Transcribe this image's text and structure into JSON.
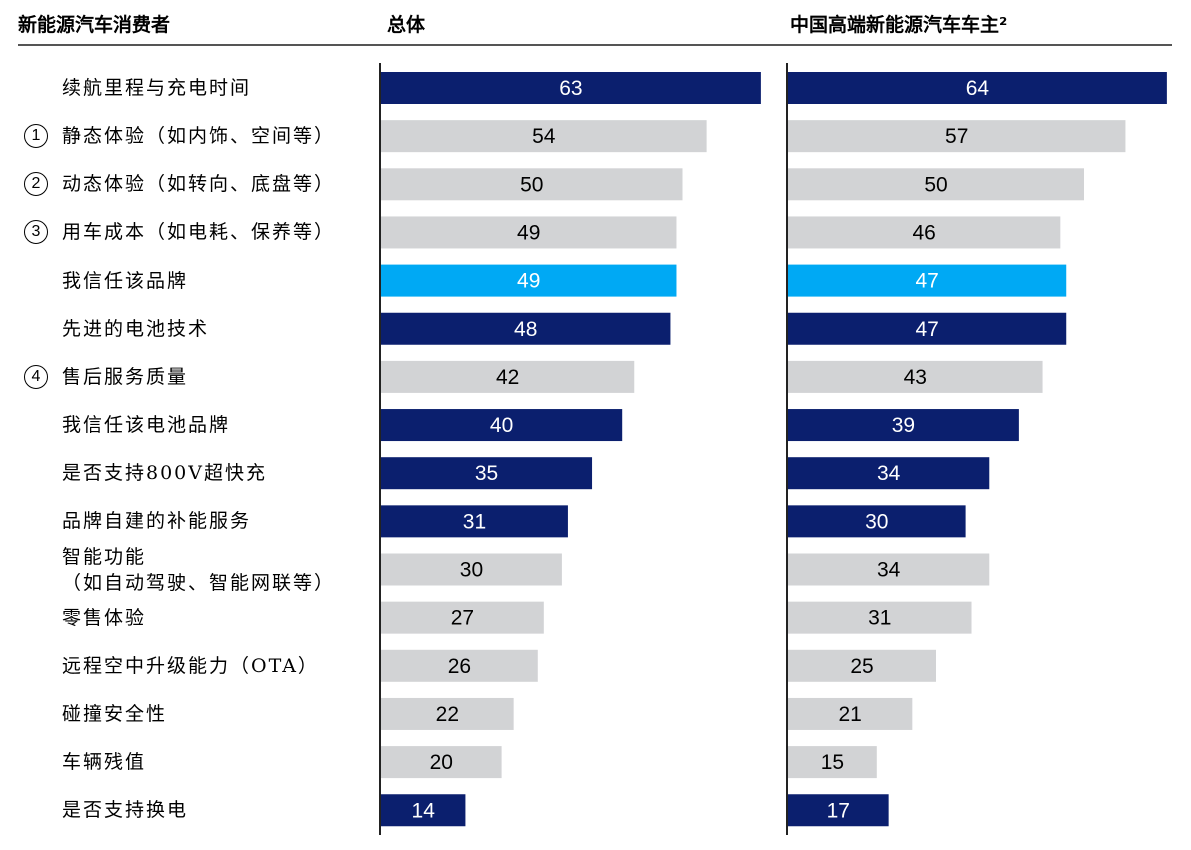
{
  "chart_data": {
    "type": "bar",
    "orientation": "horizontal",
    "header": {
      "category_label": "新能源汽车消费者",
      "panel_titles": [
        "总体",
        "中国高端新能源汽车车主²"
      ]
    },
    "colors": {
      "dark": "#0b1f6e",
      "gray": "#d2d3d5",
      "light": "#00a9f4"
    },
    "categories": [
      {
        "label": "续航里程与充电时间",
        "marker": "",
        "color": "dark"
      },
      {
        "label": "静态体验（如内饰、空间等）",
        "marker": "1",
        "color": "gray"
      },
      {
        "label": "动态体验（如转向、底盘等）",
        "marker": "2",
        "color": "gray"
      },
      {
        "label": "用车成本（如电耗、保养等）",
        "marker": "3",
        "color": "gray"
      },
      {
        "label": "我信任该品牌",
        "marker": "",
        "color": "light"
      },
      {
        "label": "先进的电池技术",
        "marker": "",
        "color": "dark"
      },
      {
        "label": "售后服务质量",
        "marker": "4",
        "color": "gray"
      },
      {
        "label": "我信任该电池品牌",
        "marker": "",
        "color": "dark"
      },
      {
        "label": "是否支持800V超快充",
        "marker": "",
        "color": "dark"
      },
      {
        "label": "品牌自建的补能服务",
        "marker": "",
        "color": "dark"
      },
      {
        "label": "智能功能\n（如自动驾驶、智能网联等）",
        "marker": "",
        "color": "gray"
      },
      {
        "label": "零售体验",
        "marker": "",
        "color": "gray"
      },
      {
        "label": "远程空中升级能力（OTA）",
        "marker": "",
        "color": "gray"
      },
      {
        "label": "碰撞安全性",
        "marker": "",
        "color": "gray"
      },
      {
        "label": "车辆残值",
        "marker": "",
        "color": "gray"
      },
      {
        "label": "是否支持换电",
        "marker": "",
        "color": "dark"
      }
    ],
    "series": [
      {
        "name": "总体",
        "values": [
          63,
          54,
          50,
          49,
          49,
          48,
          42,
          40,
          35,
          31,
          30,
          27,
          26,
          22,
          20,
          14
        ]
      },
      {
        "name": "中国高端新能源汽车车主²",
        "values": [
          64,
          57,
          50,
          46,
          47,
          47,
          43,
          39,
          34,
          30,
          34,
          31,
          25,
          21,
          15,
          17
        ]
      }
    ],
    "grid": false,
    "legend": "none"
  }
}
